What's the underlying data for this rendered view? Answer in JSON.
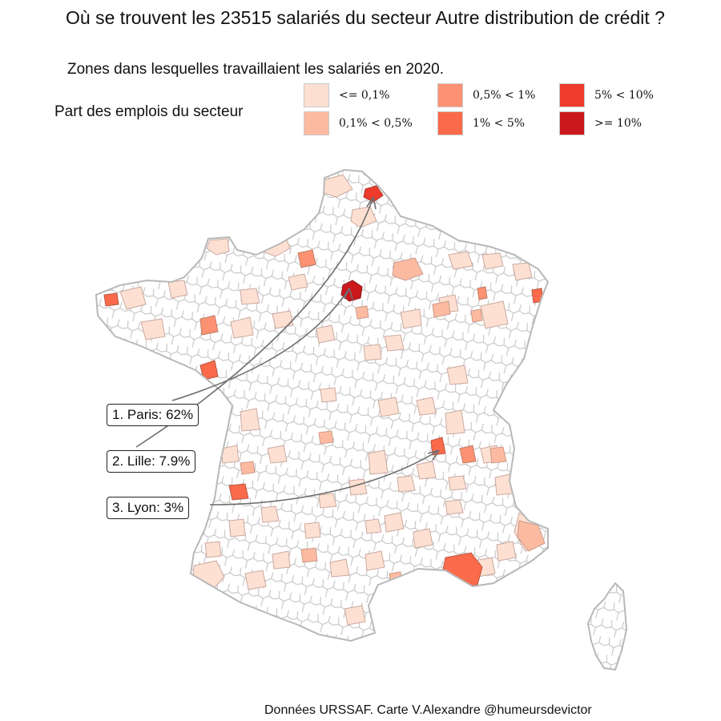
{
  "title": "Où se trouvent les 23515 salariés du secteur Autre distribution de crédit ?",
  "subtitle": "Zones dans lesquelles travaillaient les salariés en 2020.",
  "legend": {
    "title": "Part des emplois du secteur",
    "items": [
      {
        "label": "<= 0,1%",
        "color": "#fee0d2"
      },
      {
        "label": "0,1% < 0,5%",
        "color": "#fcbba1"
      },
      {
        "label": "0,5% < 1%",
        "color": "#fc9272"
      },
      {
        "label": "1% < 5%",
        "color": "#fb6a4a"
      },
      {
        "label": "5% < 10%",
        "color": "#ef3b2c"
      },
      {
        "label": ">= 10%",
        "color": "#cb181d"
      }
    ]
  },
  "callouts": [
    {
      "label": "1. Paris: 62%"
    },
    {
      "label": "2. Lille: 7.9%"
    },
    {
      "label": "3. Lyon: 3%"
    }
  ],
  "caption": "Données URSSAF. Carte V.Alexandre @humeursdevictor",
  "colors": {
    "border": "#c4c4c4",
    "arrow": "#6e6e6e"
  }
}
